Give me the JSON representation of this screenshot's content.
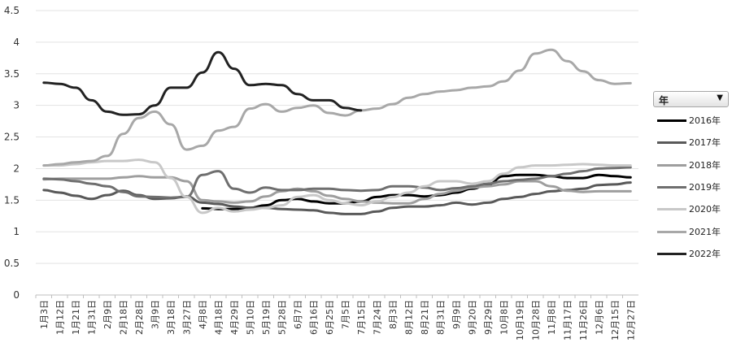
{
  "chart_data": {
    "type": "line",
    "title": "",
    "xlabel": "",
    "ylabel": "",
    "ylim": [
      0,
      4.5
    ],
    "yticks": [
      "0",
      "0.5",
      "1",
      "1.5",
      "2",
      "2.5",
      "3",
      "3.5",
      "4",
      "4.5"
    ],
    "grid": true,
    "legend_position": "right",
    "x_ticks": [
      "1月3日",
      "1月12日",
      "1月21日",
      "1月31日",
      "2月9日",
      "2月18日",
      "2月28日",
      "3月9日",
      "3月18日",
      "3月27日",
      "4月8日",
      "4月18日",
      "4月29日",
      "5月10日",
      "5月19日",
      "5月28日",
      "6月7日",
      "6月16日",
      "6月25日",
      "7月5日",
      "7月15日",
      "7月24日",
      "8月3日",
      "8月12日",
      "8月21日",
      "8月31日",
      "9月9日",
      "9月20日",
      "9月29日",
      "10月8日",
      "10月19日",
      "10月28日",
      "11月8日",
      "11月17日",
      "11月26日",
      "12月6日",
      "12月15日",
      "12月27日"
    ],
    "series": [
      {
        "name": "2016年",
        "color": "#000000",
        "values": [
          null,
          null,
          null,
          null,
          null,
          null,
          null,
          null,
          null,
          null,
          1.37,
          1.36,
          1.36,
          1.38,
          1.42,
          1.5,
          1.52,
          1.48,
          1.45,
          1.45,
          1.48,
          1.55,
          1.58,
          1.58,
          1.56,
          1.58,
          1.62,
          1.68,
          1.75,
          1.88,
          1.9,
          1.9,
          1.88,
          1.85,
          1.85,
          1.9,
          1.88,
          1.86
        ]
      },
      {
        "name": "2017年",
        "color": "#595959",
        "values": [
          1.66,
          1.62,
          1.57,
          1.52,
          1.58,
          1.65,
          1.58,
          1.52,
          1.53,
          1.56,
          1.46,
          1.44,
          1.4,
          1.38,
          1.38,
          1.36,
          1.35,
          1.34,
          1.3,
          1.28,
          1.28,
          1.32,
          1.38,
          1.4,
          1.4,
          1.42,
          1.46,
          1.43,
          1.46,
          1.52,
          1.55,
          1.6,
          1.64,
          1.66,
          1.68,
          1.74,
          1.75,
          1.78
        ]
      },
      {
        "name": "2018年",
        "color": "#9e9e9e",
        "values": [
          1.83,
          1.84,
          1.84,
          1.84,
          1.84,
          1.86,
          1.88,
          1.86,
          1.86,
          1.8,
          1.5,
          1.48,
          1.46,
          1.48,
          1.56,
          1.64,
          1.68,
          1.64,
          1.57,
          1.52,
          1.48,
          1.46,
          1.45,
          1.45,
          1.52,
          1.6,
          1.65,
          1.7,
          1.72,
          1.75,
          1.8,
          1.8,
          1.72,
          1.65,
          1.63,
          1.64,
          1.64,
          1.64
        ]
      },
      {
        "name": "2019年",
        "color": "#6f6f6f",
        "values": [
          1.84,
          1.83,
          1.8,
          1.76,
          1.72,
          1.63,
          1.56,
          1.55,
          1.54,
          1.55,
          1.9,
          1.96,
          1.68,
          1.62,
          1.7,
          1.66,
          1.66,
          1.68,
          1.68,
          1.66,
          1.65,
          1.66,
          1.72,
          1.72,
          1.7,
          1.66,
          1.69,
          1.72,
          1.76,
          1.8,
          1.82,
          1.84,
          1.88,
          1.92,
          1.96,
          2.0,
          2.01,
          2.02
        ]
      },
      {
        "name": "2020年",
        "color": "#c8c8c8",
        "values": [
          2.05,
          2.05,
          2.07,
          2.1,
          2.12,
          2.12,
          2.14,
          2.1,
          1.85,
          1.55,
          1.3,
          1.38,
          1.32,
          1.35,
          1.38,
          1.42,
          1.55,
          1.58,
          1.5,
          1.45,
          1.42,
          1.48,
          1.55,
          1.62,
          1.72,
          1.8,
          1.8,
          1.76,
          1.8,
          1.92,
          2.02,
          2.05,
          2.05,
          2.06,
          2.07,
          2.06,
          2.05,
          2.05
        ]
      },
      {
        "name": "2021年",
        "color": "#a8a8a8",
        "values": [
          2.05,
          2.07,
          2.1,
          2.12,
          2.2,
          2.55,
          2.8,
          2.9,
          2.7,
          2.3,
          2.36,
          2.6,
          2.66,
          2.95,
          3.02,
          2.9,
          2.96,
          3.0,
          2.88,
          2.84,
          2.92,
          2.95,
          3.02,
          3.12,
          3.18,
          3.22,
          3.24,
          3.28,
          3.3,
          3.38,
          3.55,
          3.82,
          3.88,
          3.7,
          3.54,
          3.4,
          3.34,
          3.35
        ]
      },
      {
        "name": "2022年",
        "color": "#222222",
        "values": [
          3.36,
          3.34,
          3.28,
          3.08,
          2.9,
          2.85,
          2.86,
          3.0,
          3.28,
          3.28,
          3.52,
          3.84,
          3.58,
          3.32,
          3.34,
          3.32,
          3.18,
          3.08,
          3.08,
          2.96,
          2.92,
          null,
          null,
          null,
          null,
          null,
          null,
          null,
          null,
          null,
          null,
          null,
          null,
          null,
          null,
          null,
          null,
          null
        ]
      }
    ]
  },
  "legend": {
    "filter_label": "年",
    "filter_icon": "dropdown-triangle"
  }
}
